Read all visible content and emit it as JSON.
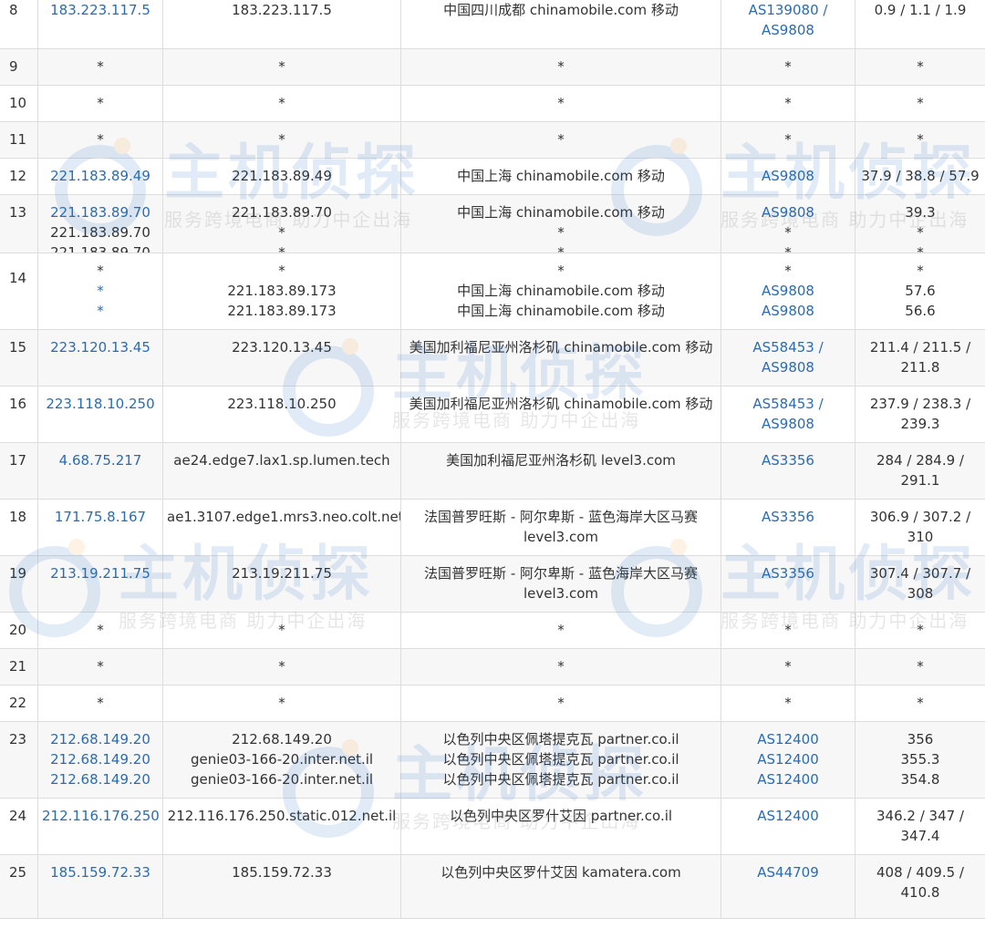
{
  "rows": [
    {
      "hop": "8",
      "ip": "183.223.117.5",
      "host": [
        "183.223.117.5"
      ],
      "loc": [
        "中国四川成都 chinamobile.com 移动"
      ],
      "as": [
        "AS139080 /",
        "AS9808"
      ],
      "time": [
        "0.9 / 1.1 / 1.9"
      ]
    },
    {
      "hop": "9",
      "ip": "*",
      "host": [
        "*"
      ],
      "loc": [
        "*"
      ],
      "as": [
        "*"
      ],
      "time": [
        "*"
      ]
    },
    {
      "hop": "10",
      "ip": "*",
      "host": [
        "*"
      ],
      "loc": [
        "*"
      ],
      "as": [
        "*"
      ],
      "time": [
        "*"
      ]
    },
    {
      "hop": "11",
      "ip": "*",
      "host": [
        "*"
      ],
      "loc": [
        "*"
      ],
      "as": [
        "*"
      ],
      "time": [
        "*"
      ]
    },
    {
      "hop": "12",
      "ip": "221.183.89.49",
      "host": [
        "221.183.89.49"
      ],
      "loc": [
        "中国上海 chinamobile.com 移动"
      ],
      "as": [
        "AS9808"
      ],
      "time": [
        "37.9 / 38.8 / 57.9"
      ]
    },
    {
      "hop": "13",
      "ip": "221.183.89.70",
      "ip_extra": [
        "*",
        "*"
      ],
      "host": [
        "221.183.89.70",
        "*",
        "*"
      ],
      "loc": [
        "中国上海 chinamobile.com 移动",
        "*",
        "*"
      ],
      "as": [
        "AS9808",
        "*",
        "*"
      ],
      "time": [
        "39.3",
        "*",
        "*"
      ]
    },
    {
      "hop": "14",
      "ip": "*",
      "ip_extra": [
        "221.183.89.173",
        "221.183.89.173"
      ],
      "host": [
        "*",
        "221.183.89.173",
        "221.183.89.173"
      ],
      "loc": [
        "*",
        "中国上海 chinamobile.com 移动",
        "中国上海 chinamobile.com 移动"
      ],
      "as": [
        "*",
        "AS9808",
        "AS9808"
      ],
      "time": [
        "*",
        "57.6",
        "56.6"
      ]
    },
    {
      "hop": "15",
      "ip": "223.120.13.45",
      "host": [
        "223.120.13.45"
      ],
      "loc": [
        "美国加利福尼亚州洛杉矶 chinamobile.com 移动"
      ],
      "as": [
        "AS58453 /",
        "AS9808"
      ],
      "time": [
        "211.4 / 211.5 /",
        "211.8"
      ]
    },
    {
      "hop": "16",
      "ip": "223.118.10.250",
      "host": [
        "223.118.10.250"
      ],
      "loc": [
        "美国加利福尼亚州洛杉矶 chinamobile.com 移动"
      ],
      "as": [
        "AS58453 /",
        "AS9808"
      ],
      "time": [
        "237.9 / 238.3 /",
        "239.3"
      ]
    },
    {
      "hop": "17",
      "ip": "4.68.75.217",
      "host": [
        "ae24.edge7.lax1.sp.lumen.tech"
      ],
      "loc": [
        "美国加利福尼亚州洛杉矶 level3.com"
      ],
      "as": [
        "AS3356"
      ],
      "time": [
        "284 / 284.9 /",
        "291.1"
      ]
    },
    {
      "hop": "18",
      "ip": "171.75.8.167",
      "host": [
        "ae1.3107.edge1.mrs3.neo.colt.net"
      ],
      "loc": [
        "法国普罗旺斯 - 阿尔卑斯 - 蓝色海岸大区马赛",
        "level3.com"
      ],
      "as": [
        "AS3356"
      ],
      "time": [
        "306.9 / 307.2 /",
        "310"
      ]
    },
    {
      "hop": "19",
      "ip": "213.19.211.75",
      "host": [
        "213.19.211.75"
      ],
      "loc": [
        "法国普罗旺斯 - 阿尔卑斯 - 蓝色海岸大区马赛",
        "level3.com"
      ],
      "as": [
        "AS3356"
      ],
      "time": [
        "307.4 / 307.7 /",
        "308"
      ]
    },
    {
      "hop": "20",
      "ip": "*",
      "host": [
        "*"
      ],
      "loc": [
        "*"
      ],
      "as": [
        "*"
      ],
      "time": [
        "*"
      ]
    },
    {
      "hop": "21",
      "ip": "*",
      "host": [
        "*"
      ],
      "loc": [
        "*"
      ],
      "as": [
        "*"
      ],
      "time": [
        "*"
      ]
    },
    {
      "hop": "22",
      "ip": "*",
      "host": [
        "*"
      ],
      "loc": [
        "*"
      ],
      "as": [
        "*"
      ],
      "time": [
        "*"
      ]
    },
    {
      "hop": "23",
      "ip": "212.68.149.20",
      "ip_extra": [
        "212.68.149.20",
        "212.68.149.20"
      ],
      "host": [
        "212.68.149.20",
        "genie03-166-20.inter.net.il",
        "genie03-166-20.inter.net.il"
      ],
      "loc": [
        "以色列中央区佩塔提克瓦 partner.co.il",
        "以色列中央区佩塔提克瓦 partner.co.il",
        "以色列中央区佩塔提克瓦 partner.co.il"
      ],
      "as": [
        "AS12400",
        "AS12400",
        "AS12400"
      ],
      "time": [
        "356",
        "355.3",
        "354.8"
      ]
    },
    {
      "hop": "24",
      "ip": "212.116.176.250",
      "host": [
        "212.116.176.250.static.012.net.il"
      ],
      "loc": [
        "以色列中央区罗什艾因 partner.co.il"
      ],
      "as": [
        "AS12400"
      ],
      "time": [
        "346.2 / 347 /",
        "347.4"
      ]
    },
    {
      "hop": "25",
      "ip": "185.159.72.33",
      "host": [
        "185.159.72.33"
      ],
      "loc": [
        "以色列中央区罗什艾因 kamatera.com"
      ],
      "as": [
        "AS44709"
      ],
      "time": [
        "408 / 409.5 /",
        "410.8"
      ]
    }
  ],
  "watermark": {
    "mark": "主机侦探",
    "sub": "服务跨境电商 助力中企出海"
  },
  "colors": {
    "link": "#2b6cb0",
    "border": "#dddddd",
    "stripe": "#f7f7f7"
  }
}
